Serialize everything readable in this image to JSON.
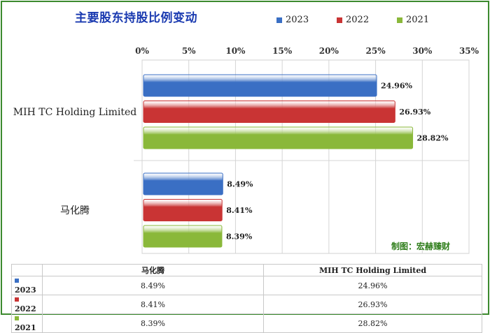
{
  "chart_data": {
    "type": "bar",
    "orientation": "horizontal",
    "title": "主要股东持股比例变动",
    "categories": [
      "MIH TC Holding Limited",
      "马化腾"
    ],
    "series": [
      {
        "name": "2023",
        "color": "#3a6fc4",
        "values": [
          24.96,
          8.49
        ],
        "labels": [
          "24.96%",
          "8.49%"
        ]
      },
      {
        "name": "2022",
        "color": "#c93434",
        "values": [
          26.93,
          8.41
        ],
        "labels": [
          "26.93%",
          "8.41%"
        ]
      },
      {
        "name": "2021",
        "color": "#8ab83a",
        "values": [
          28.82,
          8.39
        ],
        "labels": [
          "28.82%",
          "8.39%"
        ]
      }
    ],
    "xlim": [
      0,
      35
    ],
    "x_ticks": [
      "0%",
      "5%",
      "10%",
      "15%",
      "20%",
      "25%",
      "30%",
      "35%"
    ],
    "x_axis_position": "top",
    "grid": true,
    "legend_position": "top"
  },
  "credit": "制图：宏赫臻财",
  "table": {
    "columns": [
      "马化腾",
      "MIH TC Holding Limited"
    ],
    "rows": [
      {
        "label": "2023",
        "values": [
          "8.49%",
          "24.96%"
        ]
      },
      {
        "label": "2022",
        "values": [
          "8.41%",
          "26.93%"
        ]
      },
      {
        "label": "2021",
        "values": [
          "8.39%",
          "28.82%"
        ]
      }
    ]
  }
}
